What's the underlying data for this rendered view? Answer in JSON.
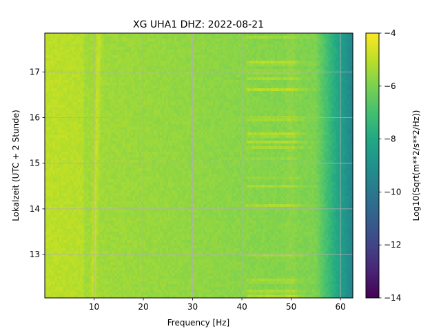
{
  "chart_data": {
    "type": "heatmap",
    "title": "XG UHA1  DHZ: 2022-08-21",
    "xlabel": "Frequency [Hz]",
    "ylabel": "Lokalzeit (UTC + 2 Stunde)",
    "xlim": [
      0,
      62.5
    ],
    "ylim": [
      17.85,
      12.05
    ],
    "x_ticks": [
      10,
      20,
      30,
      40,
      50,
      60
    ],
    "x_tick_labels": [
      "10",
      "20",
      "30",
      "40",
      "50",
      "60"
    ],
    "y_ticks": [
      13,
      14,
      15,
      16,
      17
    ],
    "y_tick_labels": [
      "13",
      "14",
      "15",
      "16",
      "17"
    ],
    "grid": true,
    "colormap": "viridis",
    "colorbar": {
      "label": "Log10(Sqrt(m**2/s**2/Hz))",
      "range": [
        -14,
        -4
      ],
      "ticks": [
        -4,
        -6,
        -8,
        -10,
        -12,
        -14
      ],
      "tick_labels": [
        "−4",
        "−6",
        "−8",
        "−10",
        "−12",
        "−14"
      ]
    },
    "features": {
      "band_near_hz": [
        10,
        12
      ],
      "tonal_lines_hz": [
        41,
        50
      ],
      "high_freq_rolloff_hz": [
        55,
        62.5
      ]
    }
  }
}
